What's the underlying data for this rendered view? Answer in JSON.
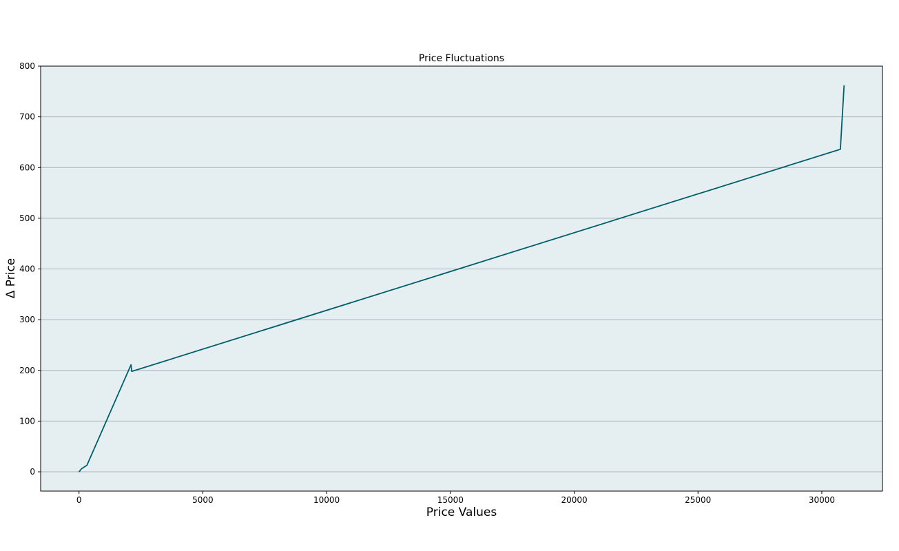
{
  "chart_data": {
    "type": "line",
    "title": "Price Fluctuations",
    "xlabel": "Price Values",
    "ylabel": "Δ Price",
    "xlim": [
      -1550,
      32450
    ],
    "ylim": [
      -38,
      800
    ],
    "x_ticks": [
      0,
      5000,
      10000,
      15000,
      20000,
      25000,
      30000
    ],
    "y_ticks": [
      0,
      100,
      200,
      300,
      400,
      500,
      600,
      700,
      800
    ],
    "grid": "horizontal",
    "legend": "none",
    "colors": {
      "plot_background": "#e5eef1",
      "line": "#005f6a",
      "grid": "#aab3b7",
      "frame": "#000000"
    },
    "series": [
      {
        "x": [
          0,
          100,
          320,
          2100,
          2130,
          30750,
          30900
        ],
        "y": [
          0,
          6,
          13,
          211,
          198,
          636,
          762
        ]
      }
    ]
  }
}
